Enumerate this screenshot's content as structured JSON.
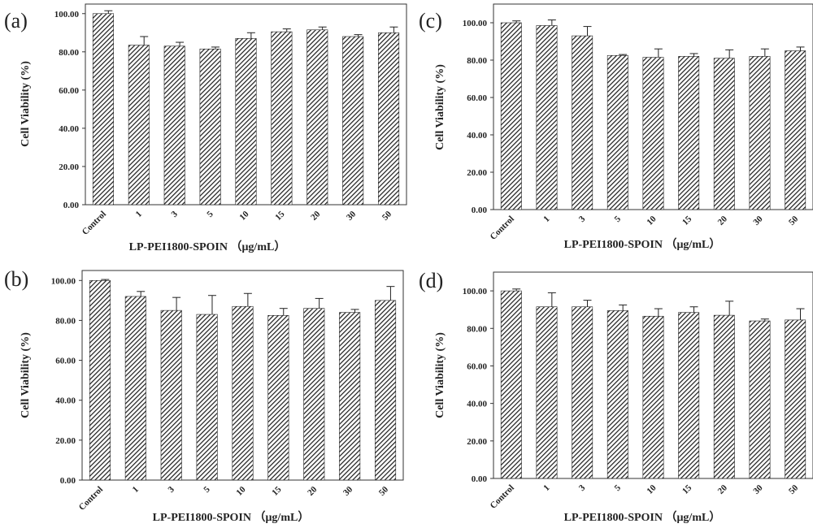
{
  "chart_data": [
    {
      "panel": "(a)",
      "type": "bar",
      "categories": [
        "Control",
        "1",
        "3",
        "5",
        "10",
        "15",
        "20",
        "30",
        "50"
      ],
      "values": [
        100.0,
        83.5,
        83.0,
        81.5,
        87.0,
        90.5,
        91.5,
        88.0,
        90.0
      ],
      "errors": [
        1.5,
        4.5,
        2.0,
        1.0,
        3.0,
        1.5,
        1.5,
        1.0,
        3.0
      ],
      "ylabel": "Cell Viability (%)",
      "xlabel": "LP-PEI1800-SPOIN （μg/mL）",
      "ylim": [
        0,
        105
      ],
      "yticks": [
        "0.00",
        "20.00",
        "40.00",
        "60.00",
        "80.00",
        "100.00"
      ],
      "grid": false,
      "pattern": "diagonal-hatch"
    },
    {
      "panel": "(b)",
      "type": "bar",
      "categories": [
        "Control",
        "1",
        "3",
        "5",
        "10",
        "15",
        "20",
        "30",
        "50"
      ],
      "values": [
        100.0,
        92.0,
        85.0,
        83.0,
        87.0,
        82.5,
        86.0,
        84.0,
        90.0
      ],
      "errors": [
        0.5,
        2.5,
        6.5,
        9.5,
        6.5,
        3.5,
        5.0,
        1.5,
        7.0
      ],
      "ylabel": "Cell Viability (%)",
      "xlabel": "LP-PEI1800-SPOIN （μg/mL）",
      "ylim": [
        0,
        105
      ],
      "yticks": [
        "0.00",
        "20.00",
        "40.00",
        "60.00",
        "80.00",
        "100.00"
      ],
      "grid": false,
      "pattern": "diagonal-hatch"
    },
    {
      "panel": "(c)",
      "type": "bar",
      "categories": [
        "Control",
        "1",
        "3",
        "5",
        "10",
        "15",
        "20",
        "30",
        "50"
      ],
      "values": [
        100.0,
        98.5,
        93.0,
        82.5,
        81.5,
        82.0,
        81.0,
        82.0,
        85.0
      ],
      "errors": [
        1.0,
        3.0,
        5.0,
        0.5,
        4.5,
        1.5,
        4.5,
        4.0,
        2.0
      ],
      "ylabel": "Cell Viability (%)",
      "xlabel": "LP-PEI1800-SPOIN （μg/mL）",
      "ylim": [
        0,
        110
      ],
      "yticks": [
        "0.00",
        "20.00",
        "40.00",
        "60.00",
        "80.00",
        "100.00"
      ],
      "grid": false,
      "pattern": "diagonal-hatch"
    },
    {
      "panel": "(d)",
      "type": "bar",
      "categories": [
        "Control",
        "1",
        "3",
        "5",
        "10",
        "15",
        "20",
        "30",
        "50"
      ],
      "values": [
        100.0,
        91.5,
        91.5,
        89.5,
        86.5,
        88.5,
        87.0,
        84.0,
        84.5
      ],
      "errors": [
        1.0,
        7.5,
        3.5,
        3.0,
        4.0,
        3.0,
        7.5,
        1.0,
        6.0
      ],
      "ylabel": "Cell Viability (%)",
      "xlabel": "LP-PEI1800-SPOIN （μg/mL）",
      "ylim": [
        0,
        110
      ],
      "yticks": [
        "0.00",
        "20.00",
        "40.00",
        "60.00",
        "80.00",
        "100.00"
      ],
      "grid": false,
      "pattern": "diagonal-hatch"
    }
  ]
}
